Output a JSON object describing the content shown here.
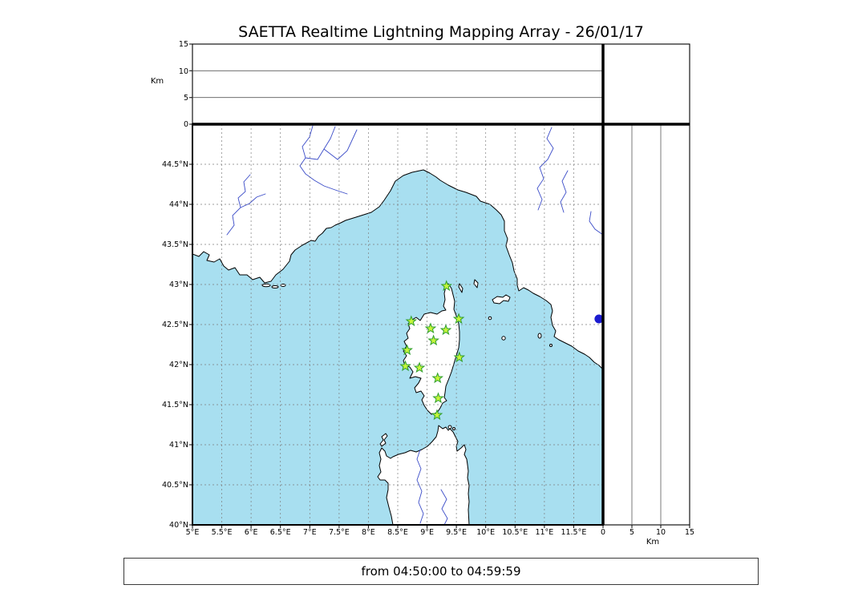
{
  "title": "SAETTA Realtime Lightning Mapping Array - 26/01/17",
  "footer": {
    "time_range": "from 04:50:00 to 04:59:59"
  },
  "map": {
    "lon_min": 5,
    "lon_max": 12,
    "lat_min": 40,
    "lat_max": 45,
    "lon_tick_labels": [
      "5°E",
      "5.5°E",
      "6°E",
      "6.5°E",
      "7°E",
      "7.5°E",
      "8°E",
      "8.5°E",
      "9°E",
      "9.5°E",
      "10°E",
      "10.5°E",
      "11°E",
      "11.5°E"
    ],
    "lat_tick_labels": [
      "44.5°N",
      "44°N",
      "43.5°N",
      "43°N",
      "42.5°N",
      "42°N",
      "41.5°N",
      "41°N",
      "40.5°N",
      "40°N"
    ]
  },
  "altitude_axes": {
    "unit_label": "Km",
    "range_km": [
      0,
      15
    ],
    "gridlines_km": [
      5,
      10
    ],
    "top_panel_tick_labels": [
      "15",
      "10",
      "5",
      "0"
    ],
    "right_panel_tick_labels": [
      "0",
      "5",
      "10",
      "15"
    ]
  },
  "colors": {
    "sea": "#a8dff0",
    "land": "#ffffff",
    "coast": "#000000",
    "river": "#3b4cc8",
    "grid": "#7d7d7d",
    "station_fill": "#c6f53a",
    "station_edge": "#2e9e2e",
    "lake": "#1b1bd0"
  },
  "stations": [
    {
      "lon": 9.33,
      "lat": 42.98
    },
    {
      "lon": 8.73,
      "lat": 42.54
    },
    {
      "lon": 9.06,
      "lat": 42.45
    },
    {
      "lon": 9.32,
      "lat": 42.43
    },
    {
      "lon": 9.54,
      "lat": 42.57
    },
    {
      "lon": 9.11,
      "lat": 42.3
    },
    {
      "lon": 8.66,
      "lat": 42.18
    },
    {
      "lon": 9.55,
      "lat": 42.09
    },
    {
      "lon": 8.63,
      "lat": 41.98
    },
    {
      "lon": 8.87,
      "lat": 41.96
    },
    {
      "lon": 9.18,
      "lat": 41.83
    },
    {
      "lon": 9.19,
      "lat": 41.58
    },
    {
      "lon": 9.17,
      "lat": 41.37
    }
  ],
  "lake": {
    "lon": 11.93,
    "lat": 42.57
  }
}
